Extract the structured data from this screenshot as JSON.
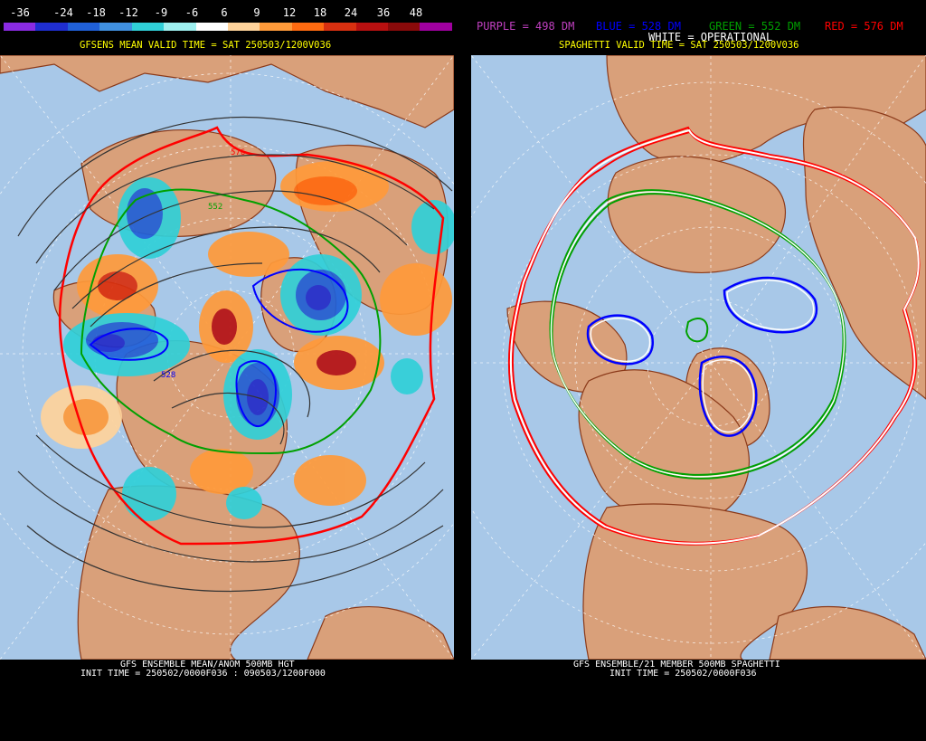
{
  "left": {
    "colorbar": {
      "labels": [
        "-36",
        "-24",
        "-18",
        "-12",
        "-9",
        "-6",
        "6",
        "9",
        "12",
        "18",
        "24",
        "36",
        "48"
      ],
      "colors": [
        "#8a2be2",
        "#1f2ed0",
        "#2060d8",
        "#4090e0",
        "#30d0d8",
        "#9ef0f0",
        "#ffffff",
        "#ffd39b",
        "#ff9a3a",
        "#ff6a10",
        "#d83010",
        "#b81010",
        "#8a0a0a",
        "#a000a0"
      ]
    },
    "title": "GFSENS MEAN VALID TIME = SAT 250503/1200V036",
    "contour_labels": [
      "576",
      "552",
      "528"
    ],
    "bottom_line1": "GFS ENSEMBLE MEAN/ANOM 500MB HGT",
    "bottom_line2": "INIT TIME = 250502/0000F036 : 090503/1200F000"
  },
  "right": {
    "legend": {
      "purple": "PURPLE = 498 DM",
      "blue": "BLUE = 528 DM",
      "green": "GREEN = 552 DM",
      "red": "RED = 576 DM",
      "white": "WHITE = OPERATIONAL"
    },
    "title": "SPAGHETTI VALID TIME = SAT 250503/1200V036",
    "bottom_line1": "GFS ENSEMBLE/21 MEMBER 500MB SPAGHETTI",
    "bottom_line2": "INIT TIME = 250502/0000F036"
  },
  "colors": {
    "ocean": "#a8c8e8",
    "land": "#d9a07a",
    "border": "#8b3a1a",
    "grid": "#ffffff",
    "purple": "#c040c0",
    "blue": "#0000ff",
    "green": "#00a000",
    "red": "#ff0000",
    "white": "#ffffff"
  }
}
